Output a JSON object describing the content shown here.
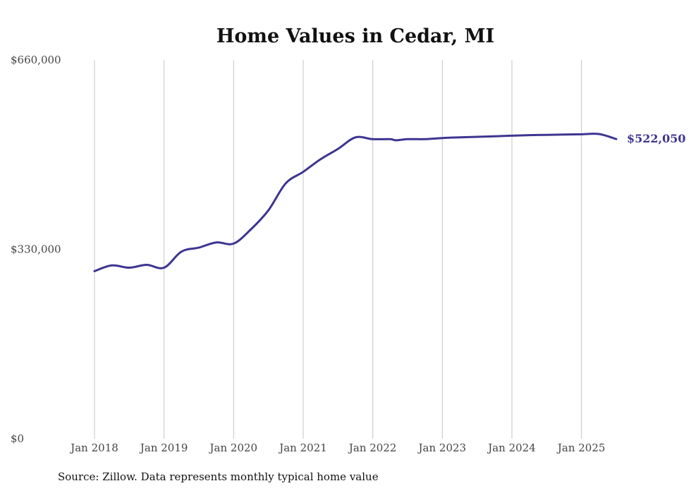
{
  "chart_data": {
    "type": "line",
    "title": "Home Values in Cedar, MI",
    "xlabel": "",
    "ylabel": "",
    "ylim": [
      0,
      660000
    ],
    "xlim": [
      "2018-01",
      "2025-07"
    ],
    "grid": "vertical",
    "y_ticks": [
      {
        "value": 0,
        "label": "$0"
      },
      {
        "value": 330000,
        "label": "$330,000"
      },
      {
        "value": 660000,
        "label": "$660,000"
      }
    ],
    "x_ticks": [
      {
        "value": "2018-01",
        "label": "Jan 2018"
      },
      {
        "value": "2019-01",
        "label": "Jan 2019"
      },
      {
        "value": "2020-01",
        "label": "Jan 2020"
      },
      {
        "value": "2021-01",
        "label": "Jan 2021"
      },
      {
        "value": "2022-01",
        "label": "Jan 2022"
      },
      {
        "value": "2023-01",
        "label": "Jan 2023"
      },
      {
        "value": "2024-01",
        "label": "Jan 2024"
      },
      {
        "value": "2025-01",
        "label": "Jan 2025"
      }
    ],
    "series": [
      {
        "color": "#3d3590",
        "end_label": "$522,050",
        "x": [
          "2018-01",
          "2018-04",
          "2018-07",
          "2018-10",
          "2019-01",
          "2019-04",
          "2019-07",
          "2019-10",
          "2020-01",
          "2020-04",
          "2020-07",
          "2020-10",
          "2021-01",
          "2021-04",
          "2021-07",
          "2021-10",
          "2022-01",
          "2022-04",
          "2022-05",
          "2022-07",
          "2022-10",
          "2023-01",
          "2023-04",
          "2023-07",
          "2023-10",
          "2024-01",
          "2024-04",
          "2024-07",
          "2024-10",
          "2025-01",
          "2025-04",
          "2025-07"
        ],
        "values": [
          292000,
          302000,
          298000,
          303000,
          298000,
          326000,
          333000,
          342000,
          340000,
          365000,
          398000,
          445000,
          465000,
          487000,
          505000,
          525000,
          522000,
          522000,
          520000,
          522000,
          522000,
          524000,
          525000,
          526000,
          527000,
          528000,
          529000,
          529500,
          530000,
          530500,
          531000,
          522050
        ]
      }
    ]
  },
  "footer": {
    "source": "Source: Zillow. Data represents monthly typical home value"
  }
}
